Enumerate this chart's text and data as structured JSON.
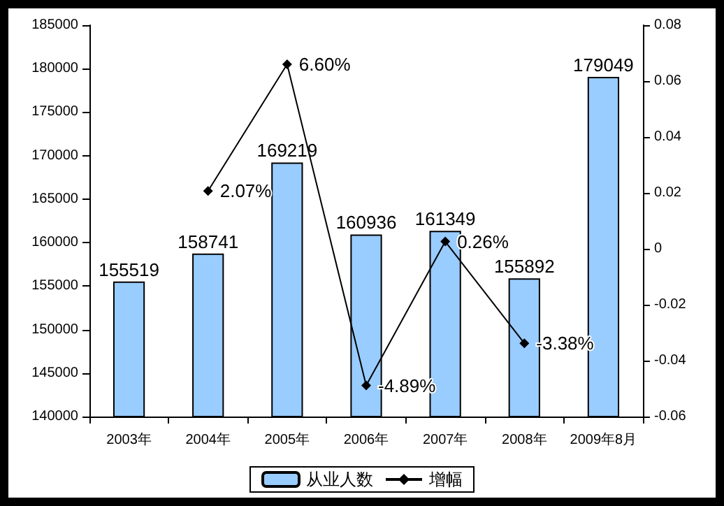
{
  "chart_data": {
    "type": "bar",
    "categories": [
      "2003年",
      "2004年",
      "2005年",
      "2006年",
      "2007年",
      "2008年",
      "2009年8月"
    ],
    "series": [
      {
        "name": "从业人数",
        "type": "bar",
        "color": "#99ccff",
        "values": [
          155519,
          158741,
          169219,
          160936,
          161349,
          155892,
          179049
        ],
        "value_labels": [
          "155519",
          "158741",
          "169219",
          "160936",
          "161349",
          "155892",
          "179049"
        ]
      },
      {
        "name": "增幅",
        "type": "line",
        "axis": "y2",
        "color": "#000000",
        "marker": "diamond",
        "values": [
          null,
          0.0207,
          0.066,
          -0.0489,
          0.0026,
          -0.0338,
          null
        ],
        "value_labels": [
          null,
          "2.07%",
          "6.60%",
          "-4.89%",
          "0.26%",
          "-3.38%",
          null
        ]
      }
    ],
    "ylim": [
      140000,
      185000
    ],
    "yticks": [
      140000,
      145000,
      150000,
      155000,
      160000,
      165000,
      170000,
      175000,
      180000,
      185000
    ],
    "y2lim": [
      -0.06,
      0.08
    ],
    "y2ticks": [
      -0.06,
      -0.04,
      -0.02,
      0,
      0.02,
      0.04,
      0.06,
      0.08
    ],
    "grid": false,
    "legend": "bottom"
  }
}
